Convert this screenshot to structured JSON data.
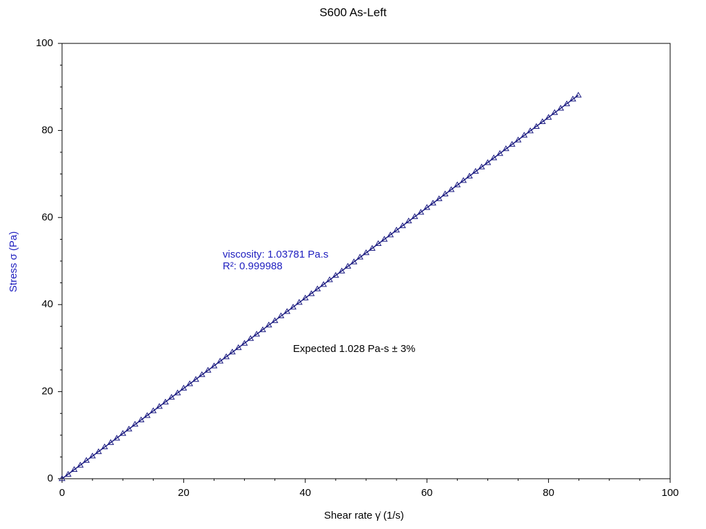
{
  "chart_data": {
    "type": "scatter",
    "title": "S600 As-Left",
    "x_label": "Shear rate  γ̇  (1/s)",
    "y_label": "Stress  σ  (Pa)",
    "xlim": [
      0,
      100
    ],
    "ylim": [
      0,
      100
    ],
    "xticks": [
      0,
      20,
      40,
      60,
      80,
      100
    ],
    "yticks": [
      0,
      20,
      40,
      60,
      80,
      100
    ],
    "xminor_ticks": [
      5,
      10,
      15,
      25,
      30,
      35,
      45,
      50,
      55,
      65,
      70,
      75,
      85,
      90,
      95
    ],
    "yminor_ticks": [
      5,
      10,
      15,
      25,
      30,
      35,
      45,
      50,
      55,
      65,
      70,
      75,
      85,
      90,
      95
    ],
    "annotations": [
      "viscosity: 1.03781 Pa.s",
      "R²: 0.999988",
      "Expected 1.028 Pa-s ± 3%"
    ],
    "series": [
      {
        "color": "#1a1a80",
        "marker": "triangle",
        "x": [
          0,
          1,
          2,
          3,
          4,
          5,
          6,
          7,
          8,
          9,
          10,
          11,
          12,
          13,
          14,
          15,
          16,
          17,
          18,
          19,
          20,
          21,
          22,
          23,
          24,
          25,
          26,
          27,
          28,
          29,
          30,
          31,
          32,
          33,
          34,
          35,
          36,
          37,
          38,
          39,
          40,
          41,
          42,
          43,
          44,
          45,
          46,
          47,
          48,
          49,
          50,
          51,
          52,
          53,
          54,
          55,
          56,
          57,
          58,
          59,
          60,
          61,
          62,
          63,
          64,
          65,
          66,
          67,
          68,
          69,
          70,
          71,
          72,
          73,
          74,
          75,
          76,
          77,
          78,
          79,
          80,
          81,
          82,
          83,
          84,
          84.9
        ],
        "values": [
          0,
          1.0,
          2.1,
          3.1,
          4.2,
          5.2,
          6.2,
          7.3,
          8.3,
          9.3,
          10.4,
          11.4,
          12.5,
          13.5,
          14.5,
          15.6,
          16.6,
          17.6,
          18.7,
          19.7,
          20.8,
          21.8,
          22.8,
          23.9,
          24.9,
          25.9,
          27.0,
          28.0,
          29.1,
          30.1,
          31.1,
          32.2,
          33.2,
          34.2,
          35.3,
          36.3,
          37.4,
          38.4,
          39.4,
          40.5,
          41.5,
          42.5,
          43.6,
          44.6,
          45.7,
          46.7,
          47.7,
          48.8,
          49.8,
          50.9,
          51.9,
          52.9,
          54.0,
          55.0,
          56.0,
          57.1,
          58.1,
          59.2,
          60.2,
          61.2,
          62.3,
          63.3,
          64.3,
          65.4,
          66.4,
          67.5,
          68.5,
          69.5,
          70.6,
          71.6,
          72.6,
          73.7,
          74.7,
          75.8,
          76.8,
          77.8,
          78.9,
          79.9,
          80.9,
          82.0,
          83.0,
          84.1,
          85.1,
          86.1,
          87.2,
          88.1
        ]
      },
      {
        "color": "#1a1a80",
        "marker": "line",
        "x": [
          0,
          84.9
        ],
        "values": [
          0,
          88.1
        ]
      }
    ]
  }
}
